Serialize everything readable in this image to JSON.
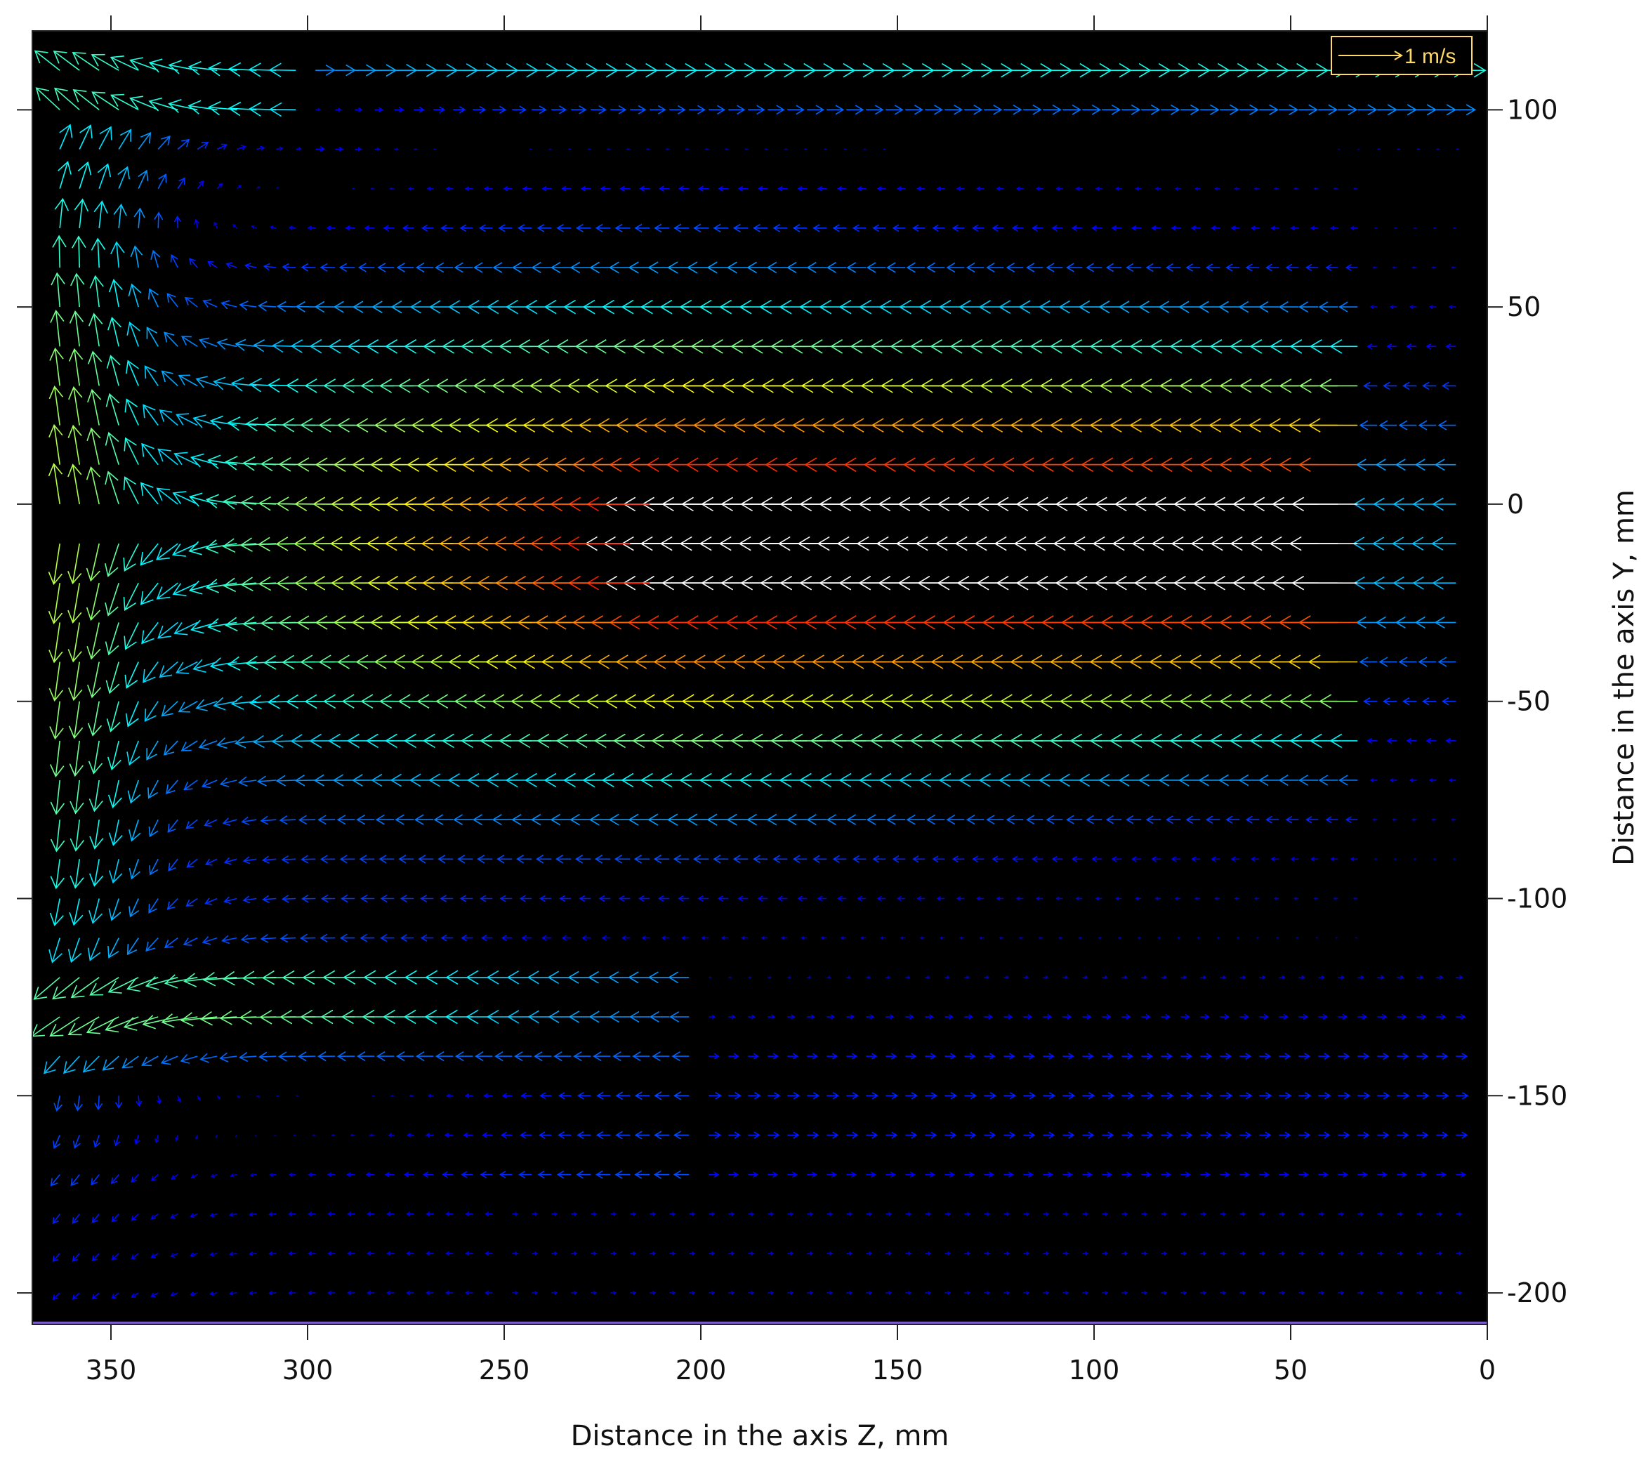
{
  "chart_data": {
    "type": "quiver",
    "xlabel": "Distance in the axis Z, mm",
    "ylabel": "Distance in the axis Y, mm",
    "xlim": [
      370,
      0
    ],
    "ylim": [
      -208,
      120
    ],
    "x_reversed": true,
    "y_axis_position": "right",
    "x_ticks": [
      350,
      300,
      250,
      200,
      150,
      100,
      50,
      0
    ],
    "y_ticks": [
      100,
      50,
      0,
      -50,
      -100,
      -150,
      -200
    ],
    "background": "#000000",
    "colormap": "jet",
    "grid": {
      "x_spacing_mm": 5,
      "y_spacing_mm": 10,
      "y_min": -205,
      "y_max": 110
    },
    "legend": {
      "label": "1 m/s",
      "placement": "top-right",
      "color": "#ffd966"
    },
    "flow": {
      "jet": {
        "core_y_mm": -10,
        "half_width_mm": 52,
        "max_speed_ms": 2.0,
        "direction": "leftward (toward +Z)",
        "start_z_mm": 30,
        "decay_end_z_mm": 340
      },
      "upper_recirculation_center": {
        "z_mm": 335,
        "y_mm": 95
      },
      "lower_recirculation_center": {
        "z_mm": 318,
        "y_mm": -140
      },
      "impingement_wall_z_mm": 362
    }
  }
}
